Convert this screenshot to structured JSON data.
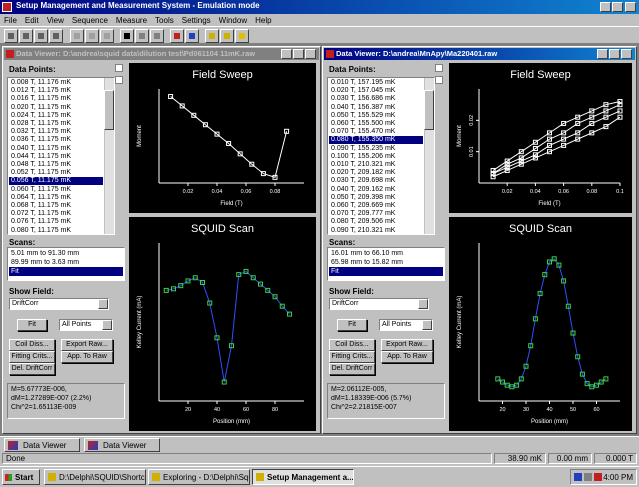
{
  "app": {
    "title": "Setup Management and Measurement System - Emulation mode",
    "menu": [
      "File",
      "Edit",
      "View",
      "Sequence",
      "Measure",
      "Tools",
      "Settings",
      "Window",
      "Help"
    ],
    "tabs": [
      "Data Viewer",
      "Data Viewer"
    ],
    "status": {
      "message": "Done",
      "temperature": "38.90 mK",
      "position": "0.00 mm",
      "field": "0.000 T"
    }
  },
  "taskbar": {
    "start": "Start",
    "items": [
      "D:\\Delphi\\SQUID\\Shortcuts",
      "Exploring - D:\\Delphi\\Squi...",
      "Setup Management a..."
    ],
    "active_item": 2,
    "clock": "4:00 PM"
  },
  "windows": [
    {
      "title": "Data Viewer: D:\\andrea\\squid data\\dilution test\\Pd061104 11mK.raw",
      "active": false,
      "data_points_label": "Data Points:",
      "data_points": [
        "0.008 T, 11.176 mK",
        "0.012 T, 11.175 mK",
        "0.016 T, 11.175 mK",
        "0.020 T, 11.175 mK",
        "0.024 T, 11.175 mK",
        "0.028 T, 11.175 mK",
        "0.032 T, 11.175 mK",
        "0.036 T, 11.175 mK",
        "0.040 T, 11.175 mK",
        "0.044 T, 11.175 mK",
        "0.048 T, 11.175 mK",
        "0.052 T, 11.175 mK",
        "0.056 T, 11.175 mK",
        "0.060 T, 11.175 mK",
        "0.064 T, 11.175 mK",
        "0.068 T, 11.175 mK",
        "0.072 T, 11.175 mK",
        "0.076 T, 11.175 mK",
        "0.080 T, 11.175 mK"
      ],
      "selected_point": 12,
      "scans_label": "Scans:",
      "scans": [
        "5.01 mm to 91.30 mm",
        "89.99 mm to 3.63 mm",
        "Fit"
      ],
      "selected_scan": 2,
      "show_field_label": "Show Field:",
      "show_field": "DriftCorr",
      "buttons": {
        "fit": "Fit",
        "points": "All Points",
        "coil": "Coil Diss...",
        "export": "Export Raw...",
        "crits": "Fitting Crits...",
        "apply": "App. To Raw",
        "delete": "Del. DriftCorr"
      },
      "results": [
        "M=5.67773E-006,",
        "dM=1.27289E-007 (2.2%)",
        "Chi^2=1.65113E-009"
      ],
      "field_sweep": {
        "title": "Field Sweep",
        "xlabel": "Field (T)",
        "ylabel": "Moment",
        "xlim": [
          0,
          0.1
        ],
        "ylim": [
          0,
          1
        ],
        "xticks": [
          0.02,
          0.04,
          0.06,
          0.08
        ],
        "yticks": [],
        "line_color": "#ffffff",
        "marker_color": "#ffffff",
        "x": [
          0.008,
          0.016,
          0.024,
          0.032,
          0.04,
          0.048,
          0.056,
          0.064,
          0.072,
          0.08,
          0.088
        ],
        "series": [
          {
            "values": [
              0.92,
              0.82,
              0.72,
              0.62,
              0.52,
              0.42,
              0.31,
              0.2,
              0.1,
              0.06,
              0.55
            ]
          }
        ]
      },
      "squid_scan": {
        "title": "SQUID Scan",
        "xlabel": "Position (mm)",
        "ylabel": "Kelley Current (mA)",
        "xlim": [
          0,
          100
        ],
        "ylim": [
          0,
          1
        ],
        "xticks": [
          20,
          40,
          60,
          80
        ],
        "yticks": [],
        "line_color": "#3050ff",
        "marker_color": "#40d040",
        "x": [
          5,
          10,
          15,
          20,
          25,
          30,
          35,
          40,
          45,
          50,
          55,
          60,
          65,
          70,
          75,
          80,
          85,
          90
        ],
        "series": [
          {
            "values": [
              0.7,
              0.71,
              0.73,
              0.76,
              0.78,
              0.75,
              0.62,
              0.4,
              0.12,
              0.35,
              0.8,
              0.82,
              0.78,
              0.74,
              0.7,
              0.66,
              0.6,
              0.55
            ]
          }
        ]
      }
    },
    {
      "title": "Data Viewer: D:\\andrea\\MnApy\\Ma220401.raw",
      "active": true,
      "data_points_label": "Data Points:",
      "data_points": [
        "0.010 T, 157.195 mK",
        "0.020 T, 157.045 mK",
        "0.030 T, 156.686 mK",
        "0.040 T, 156.387 mK",
        "0.050 T, 155.529 mK",
        "0.060 T, 155.500 mK",
        "0.070 T, 155.470 mK",
        "0.080 T, 155.350 mK",
        "0.090 T, 155.235 mK",
        "0.100 T, 155.206 mK",
        "0.010 T, 210.321 mK",
        "0.020 T, 209.182 mK",
        "0.030 T, 209.698 mK",
        "0.040 T, 209.162 mK",
        "0.050 T, 209.398 mK",
        "0.060 T, 209.669 mK",
        "0.070 T, 209.777 mK",
        "0.080 T, 209.506 mK",
        "0.090 T, 210.321 mK"
      ],
      "selected_point": 7,
      "scans_label": "Scans:",
      "scans": [
        "16.01 mm to 66.10 mm",
        "65.98 mm to 15.82 mm",
        "Fit"
      ],
      "selected_scan": 2,
      "show_field_label": "Show Field:",
      "show_field": "DriftCorr",
      "buttons": {
        "fit": "Fit",
        "points": "All Points",
        "coil": "Coil Diss...",
        "export": "Export Raw...",
        "crits": "Fitting Crits...",
        "apply": "App. To Raw",
        "delete": "Del. DriftCorr"
      },
      "results": [
        "M=2.06112E-005,",
        "dM=1.18339E-006 (5.7%)",
        "Chi^2=2.21815E-007"
      ],
      "field_sweep": {
        "title": "Field Sweep",
        "xlabel": "Field (T)",
        "ylabel": "Moment",
        "xlim": [
          0,
          0.1
        ],
        "ylim": [
          0,
          0.03
        ],
        "xticks": [
          0.02,
          0.04,
          0.06,
          0.08,
          0.1
        ],
        "yticks": [
          0.01,
          0.02
        ],
        "line_color": "#ffffff",
        "marker_color": "#ffffff",
        "x": [
          0.01,
          0.02,
          0.03,
          0.04,
          0.05,
          0.06,
          0.07,
          0.08,
          0.09,
          0.1
        ],
        "series": [
          {
            "values": [
              0.004,
              0.007,
              0.01,
              0.013,
              0.016,
              0.019,
              0.021,
              0.023,
              0.025,
              0.026
            ]
          },
          {
            "values": [
              0.003,
              0.006,
              0.008,
              0.011,
              0.014,
              0.016,
              0.019,
              0.021,
              0.023,
              0.025
            ]
          },
          {
            "values": [
              0.003,
              0.005,
              0.007,
              0.009,
              0.012,
              0.014,
              0.016,
              0.019,
              0.021,
              0.023
            ]
          },
          {
            "values": [
              0.002,
              0.004,
              0.006,
              0.008,
              0.01,
              0.012,
              0.014,
              0.016,
              0.018,
              0.021
            ]
          }
        ]
      },
      "squid_scan": {
        "title": "SQUID Scan",
        "xlabel": "Position (mm)",
        "ylabel": "Kelley Current (mA)",
        "xlim": [
          10,
          70
        ],
        "ylim": [
          0,
          1
        ],
        "xticks": [
          20,
          30,
          40,
          50,
          60
        ],
        "yticks": [],
        "line_color": "#3050ff",
        "marker_color": "#40d040",
        "x": [
          18,
          20,
          22,
          24,
          26,
          28,
          30,
          32,
          34,
          36,
          38,
          40,
          42,
          44,
          46,
          48,
          50,
          52,
          54,
          56,
          58,
          60,
          62,
          64
        ],
        "series": [
          {
            "values": [
              0.14,
              0.12,
              0.1,
              0.09,
              0.1,
              0.14,
              0.22,
              0.35,
              0.52,
              0.68,
              0.8,
              0.88,
              0.9,
              0.86,
              0.76,
              0.6,
              0.43,
              0.28,
              0.17,
              0.11,
              0.09,
              0.1,
              0.12,
              0.14
            ]
          }
        ]
      }
    }
  ]
}
